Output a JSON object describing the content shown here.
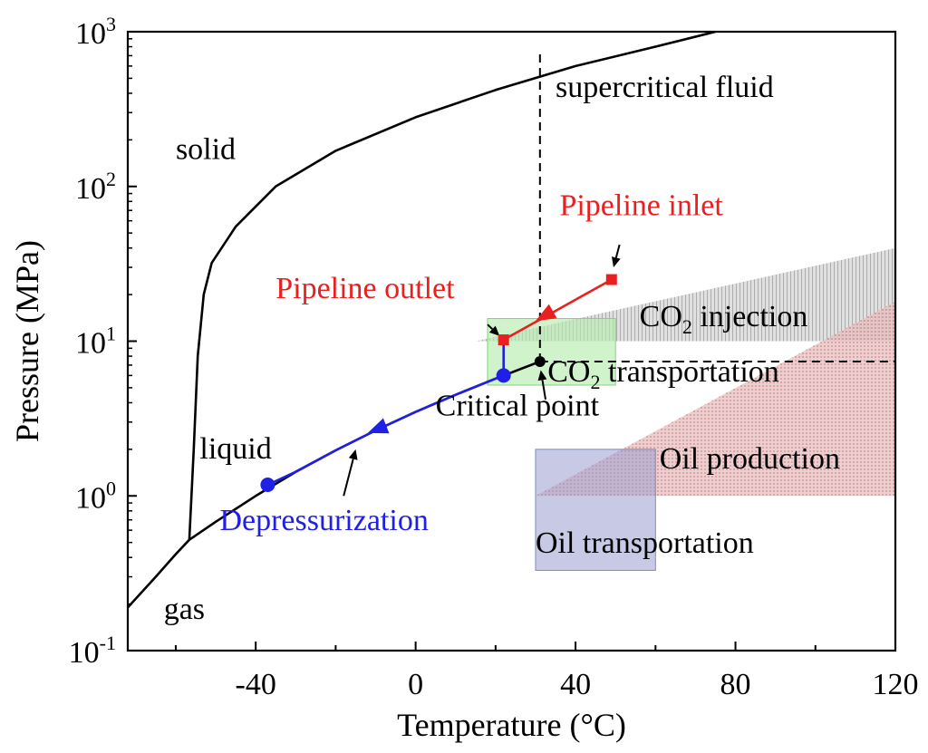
{
  "chart_data": {
    "type": "line",
    "xlabel": "Temperature (°C)",
    "ylabel": "Pressure (MPa)",
    "xlim": [
      -72,
      120
    ],
    "ylim": [
      0.1,
      1000
    ],
    "yscale": "log",
    "x_ticks": [
      -40,
      0,
      40,
      80,
      120
    ],
    "x_tick_labels": [
      "-40",
      "0",
      "40",
      "80",
      "120"
    ],
    "y_ticks": [
      0.1,
      1,
      10,
      100,
      1000
    ],
    "y_tick_labels": [
      {
        "base": "10",
        "exp": "-1"
      },
      {
        "base": "10",
        "exp": "0"
      },
      {
        "base": "10",
        "exp": "1"
      },
      {
        "base": "10",
        "exp": "2"
      },
      {
        "base": "10",
        "exp": "3"
      }
    ],
    "colors": {
      "axis": "#000000",
      "depressurization": "#1f1fe6",
      "pipeline": "#e82020",
      "boundary": "#000000"
    },
    "series": [
      {
        "key": "sublimation",
        "color": "#000000",
        "points": [
          [
            -72,
            0.19
          ],
          [
            -65,
            0.3
          ],
          [
            -60,
            0.42
          ],
          [
            -56.6,
            0.52
          ]
        ]
      },
      {
        "key": "melting",
        "color": "#000000",
        "points": [
          [
            -56.6,
            0.52
          ],
          [
            -55.5,
            2
          ],
          [
            -54.5,
            8
          ],
          [
            -53,
            20
          ],
          [
            -51,
            32
          ],
          [
            -45,
            55
          ],
          [
            -35,
            100
          ],
          [
            -20,
            170
          ],
          [
            0,
            280
          ],
          [
            20,
            420
          ],
          [
            40,
            600
          ],
          [
            60,
            800
          ],
          [
            75,
            1000
          ]
        ]
      },
      {
        "key": "vapor-liquid",
        "color": "#000000",
        "points": [
          [
            -56.6,
            0.52
          ],
          [
            -50,
            0.68
          ],
          [
            -40,
            1.0
          ],
          [
            -30,
            1.43
          ],
          [
            -20,
            1.97
          ],
          [
            -10,
            2.65
          ],
          [
            0,
            3.49
          ],
          [
            10,
            4.5
          ],
          [
            20,
            5.73
          ],
          [
            31.1,
            7.38
          ]
        ]
      },
      {
        "key": "depressurization",
        "color": "#1f1fe6",
        "points": [
          [
            -37,
            1.18
          ],
          [
            -30,
            1.43
          ],
          [
            -20,
            1.97
          ],
          [
            -10,
            2.65
          ],
          [
            0,
            3.49
          ],
          [
            10,
            4.5
          ],
          [
            20,
            5.73
          ],
          [
            22,
            6.0
          ]
        ]
      },
      {
        "key": "depressurization-vertical",
        "color": "#1f1fe6",
        "points": [
          [
            22,
            6.0
          ],
          [
            22,
            10.2
          ]
        ]
      },
      {
        "key": "pipeline",
        "color": "#e82020",
        "points": [
          [
            49,
            25
          ],
          [
            22,
            10.2
          ]
        ]
      }
    ],
    "markers": [
      {
        "key": "depressurization-start",
        "x": -37,
        "y": 1.18,
        "shape": "circle",
        "color": "#1f1fe6"
      },
      {
        "key": "depressurization-end",
        "x": 22,
        "y": 6.0,
        "shape": "circle",
        "color": "#1f1fe6"
      },
      {
        "key": "pipeline-inlet",
        "x": 49,
        "y": 25,
        "shape": "square",
        "color": "#e82020"
      },
      {
        "key": "pipeline-outlet",
        "x": 22,
        "y": 10.2,
        "shape": "square",
        "color": "#e82020"
      },
      {
        "key": "critical-point",
        "x": 31.1,
        "y": 7.38,
        "shape": "circle",
        "color": "#000000"
      }
    ],
    "dashed_lines": [
      {
        "key": "critical-temperature",
        "points": [
          [
            31.1,
            7.38
          ],
          [
            31.1,
            750
          ]
        ]
      },
      {
        "key": "critical-pressure",
        "points": [
          [
            31.1,
            7.38
          ],
          [
            120,
            7.38
          ]
        ]
      }
    ],
    "regions": [
      {
        "key": "co2-injection-zone",
        "fill": "#9a9a9a",
        "opacity": 0.55,
        "polygon": [
          [
            15,
            10
          ],
          [
            120,
            10
          ],
          [
            120,
            40
          ]
        ]
      },
      {
        "key": "oil-production-zone",
        "fill": "#cf8f92",
        "opacity": 0.55,
        "polygon": [
          [
            30,
            1
          ],
          [
            120,
            1
          ],
          [
            120,
            18
          ]
        ]
      },
      {
        "key": "co2-transportation-zone",
        "fill": "#b8ecb0",
        "opacity": 0.65,
        "stroke": "#7fd37a",
        "xrange": [
          18,
          50
        ],
        "yrange": [
          5.2,
          14
        ]
      },
      {
        "key": "oil-transportation-zone",
        "fill": "#9a9ed0",
        "opacity": 0.55,
        "stroke": "#8088c8",
        "xrange": [
          30,
          60
        ],
        "yrange": [
          0.33,
          2
        ]
      }
    ],
    "arrowheads": [
      {
        "key": "depressurization-arrow",
        "color": "#1f1fe6",
        "from": [
          -5,
          3.0
        ],
        "to": [
          -12,
          2.55
        ]
      },
      {
        "key": "pipeline-arrow",
        "color": "#e82020",
        "from": [
          36,
          16.5
        ],
        "to": [
          30,
          13.5
        ]
      }
    ],
    "pointer_arrows": [
      {
        "key": "pointer-inlet",
        "from": [
          51,
          42
        ],
        "to": [
          49.5,
          30
        ]
      },
      {
        "key": "pointer-outlet",
        "from": [
          18,
          12.8
        ],
        "to": [
          21,
          10.8
        ]
      },
      {
        "key": "pointer-depressurization",
        "from": [
          -18,
          1.0
        ],
        "to": [
          -15,
          2.0
        ]
      },
      {
        "key": "pointer-critical",
        "from": [
          32.5,
          4.2
        ],
        "to": [
          31.3,
          6.5
        ]
      }
    ],
    "annotations": [
      {
        "key": "solid",
        "text": "solid",
        "x": -60,
        "y": 150,
        "color": "#000000"
      },
      {
        "key": "liquid",
        "text": "liquid",
        "x": -54,
        "y": 1.75,
        "color": "#000000"
      },
      {
        "key": "gas",
        "text": "gas",
        "x": -63,
        "y": 0.16,
        "color": "#000000"
      },
      {
        "key": "supercritical-fluid",
        "text": "supercritical fluid",
        "x": 35,
        "y": 380,
        "color": "#000000"
      },
      {
        "key": "pipeline-inlet",
        "text": "Pipeline inlet",
        "x": 36,
        "y": 65,
        "color": "#e82020"
      },
      {
        "key": "pipeline-outlet",
        "text": "Pipeline outlet",
        "x": -35,
        "y": 19,
        "color": "#e82020"
      },
      {
        "key": "co2-injection",
        "text": "CO",
        "sub": "2",
        "rest": " injection",
        "x": 56,
        "y": 12.5,
        "color": "#000000"
      },
      {
        "key": "co2-transportation",
        "text": "CO",
        "sub": "2",
        "rest": " transportation",
        "x": 33,
        "y": 5.5,
        "color": "#000000"
      },
      {
        "key": "critical-point",
        "text": "Critical point",
        "x": 5,
        "y": 3.3,
        "color": "#000000"
      },
      {
        "key": "oil-production",
        "text": "Oil production",
        "x": 61,
        "y": 1.5,
        "color": "#000000"
      },
      {
        "key": "oil-transportation",
        "text": "Oil transportation",
        "x": 30,
        "y": 0.43,
        "color": "#000000"
      },
      {
        "key": "depressurization",
        "text": "Depressurization",
        "x": -49,
        "y": 0.6,
        "color": "#1f1fe6"
      }
    ]
  }
}
